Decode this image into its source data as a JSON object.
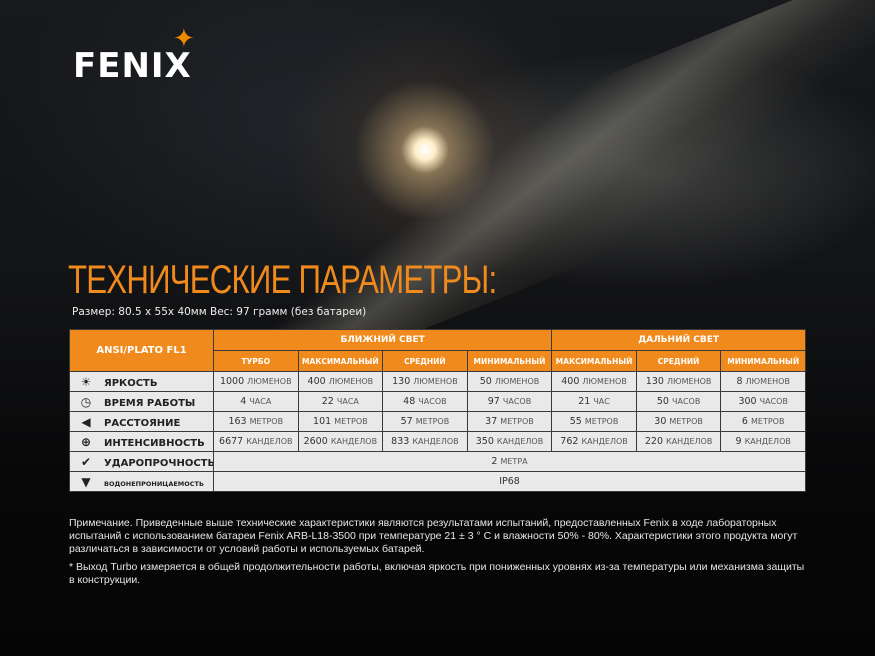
{
  "brand": {
    "logo_text": "FENIX",
    "accent_color": "#f08a1c"
  },
  "title": "ТЕХНИЧЕСКИЕ ПАРАМЕТРЫ:",
  "subtitle": "Размер: 80.5 x 55x 40мм   Вес: 97 грамм (без батареи)",
  "table": {
    "corner": "ANSI/PLATO FL1",
    "groups": [
      "БЛИЖНИЙ СВЕТ",
      "ДАЛЬНИЙ СВЕТ"
    ],
    "modes": [
      "ТУРБО",
      "МАКСИМАЛЬНЫЙ",
      "СРЕДНИЙ",
      "МИНИМАЛЬНЫЙ",
      "МАКСИМАЛЬНЫЙ",
      "СРЕДНИЙ",
      "МИНИМАЛЬНЫЙ"
    ],
    "rows": [
      {
        "label": "ЯРКОСТЬ",
        "icon": "brightness-icon",
        "cells": [
          {
            "n": "1000",
            "u": "ЛЮМЕНОВ"
          },
          {
            "n": "400",
            "u": "ЛЮМЕНОВ"
          },
          {
            "n": "130",
            "u": "ЛЮМЕНОВ"
          },
          {
            "n": "50",
            "u": "ЛЮМЕНОВ"
          },
          {
            "n": "400",
            "u": "ЛЮМЕНОВ"
          },
          {
            "n": "130",
            "u": "ЛЮМЕНОВ"
          },
          {
            "n": "8",
            "u": "ЛЮМЕНОВ"
          }
        ]
      },
      {
        "label": "ВРЕМЯ РАБОТЫ",
        "icon": "clock-icon",
        "cells": [
          {
            "n": "4",
            "u": "ЧАСА"
          },
          {
            "n": "22",
            "u": "ЧАСА"
          },
          {
            "n": "48",
            "u": "ЧАСОВ"
          },
          {
            "n": "97",
            "u": "ЧАСОВ"
          },
          {
            "n": "21",
            "u": "ЧАС"
          },
          {
            "n": "50",
            "u": "ЧАСОВ"
          },
          {
            "n": "300",
            "u": "ЧАСОВ"
          }
        ]
      },
      {
        "label": "РАССТОЯНИЕ",
        "icon": "beam-distance-icon",
        "cells": [
          {
            "n": "163",
            "u": "МЕТРОВ"
          },
          {
            "n": "101",
            "u": "МЕТРОВ"
          },
          {
            "n": "57",
            "u": "МЕТРОВ"
          },
          {
            "n": "37",
            "u": "МЕТРОВ"
          },
          {
            "n": "55",
            "u": "МЕТРОВ"
          },
          {
            "n": "30",
            "u": "МЕТРОВ"
          },
          {
            "n": "6",
            "u": "МЕТРОВ"
          }
        ]
      },
      {
        "label": "ИНТЕНСИВНОСТЬ",
        "icon": "target-icon",
        "cells": [
          {
            "n": "6677",
            "u": "КАНДЕЛОВ"
          },
          {
            "n": "2600",
            "u": "КАНДЕЛОВ"
          },
          {
            "n": "833",
            "u": "КАНДЕЛОВ"
          },
          {
            "n": "350",
            "u": "КАНДЕЛОВ"
          },
          {
            "n": "762",
            "u": "КАНДЕЛОВ"
          },
          {
            "n": "220",
            "u": "КАНДЕЛОВ"
          },
          {
            "n": "9",
            "u": "КАНДЕЛОВ"
          }
        ]
      }
    ],
    "impact": {
      "label": "УДАРОПРОЧНОСТЬ",
      "icon": "impact-check-icon",
      "n": "2",
      "u": "МЕТРА"
    },
    "water": {
      "label": "ВОДОНЕПРОНИЦАЕМОСТЬ",
      "icon": "waterproof-icon",
      "value": "IP68"
    }
  },
  "notes": [
    "Примечание. Приведенные выше технические характеристики являются результатами испытаний, предоставленных Fenix в ходе лабораторных испытаний с использованием батареи Fenix ARB-L18-3500 при температуре 21 ± 3 ° C и влажности 50% - 80%. Характеристики этого продукта могут различаться в зависимости от условий работы и используемых батарей.",
    "* Выход Turbo измеряется в общей продолжительности работы, включая яркость при пониженных уровнях из-за температуры или механизма защиты в конструкции."
  ]
}
